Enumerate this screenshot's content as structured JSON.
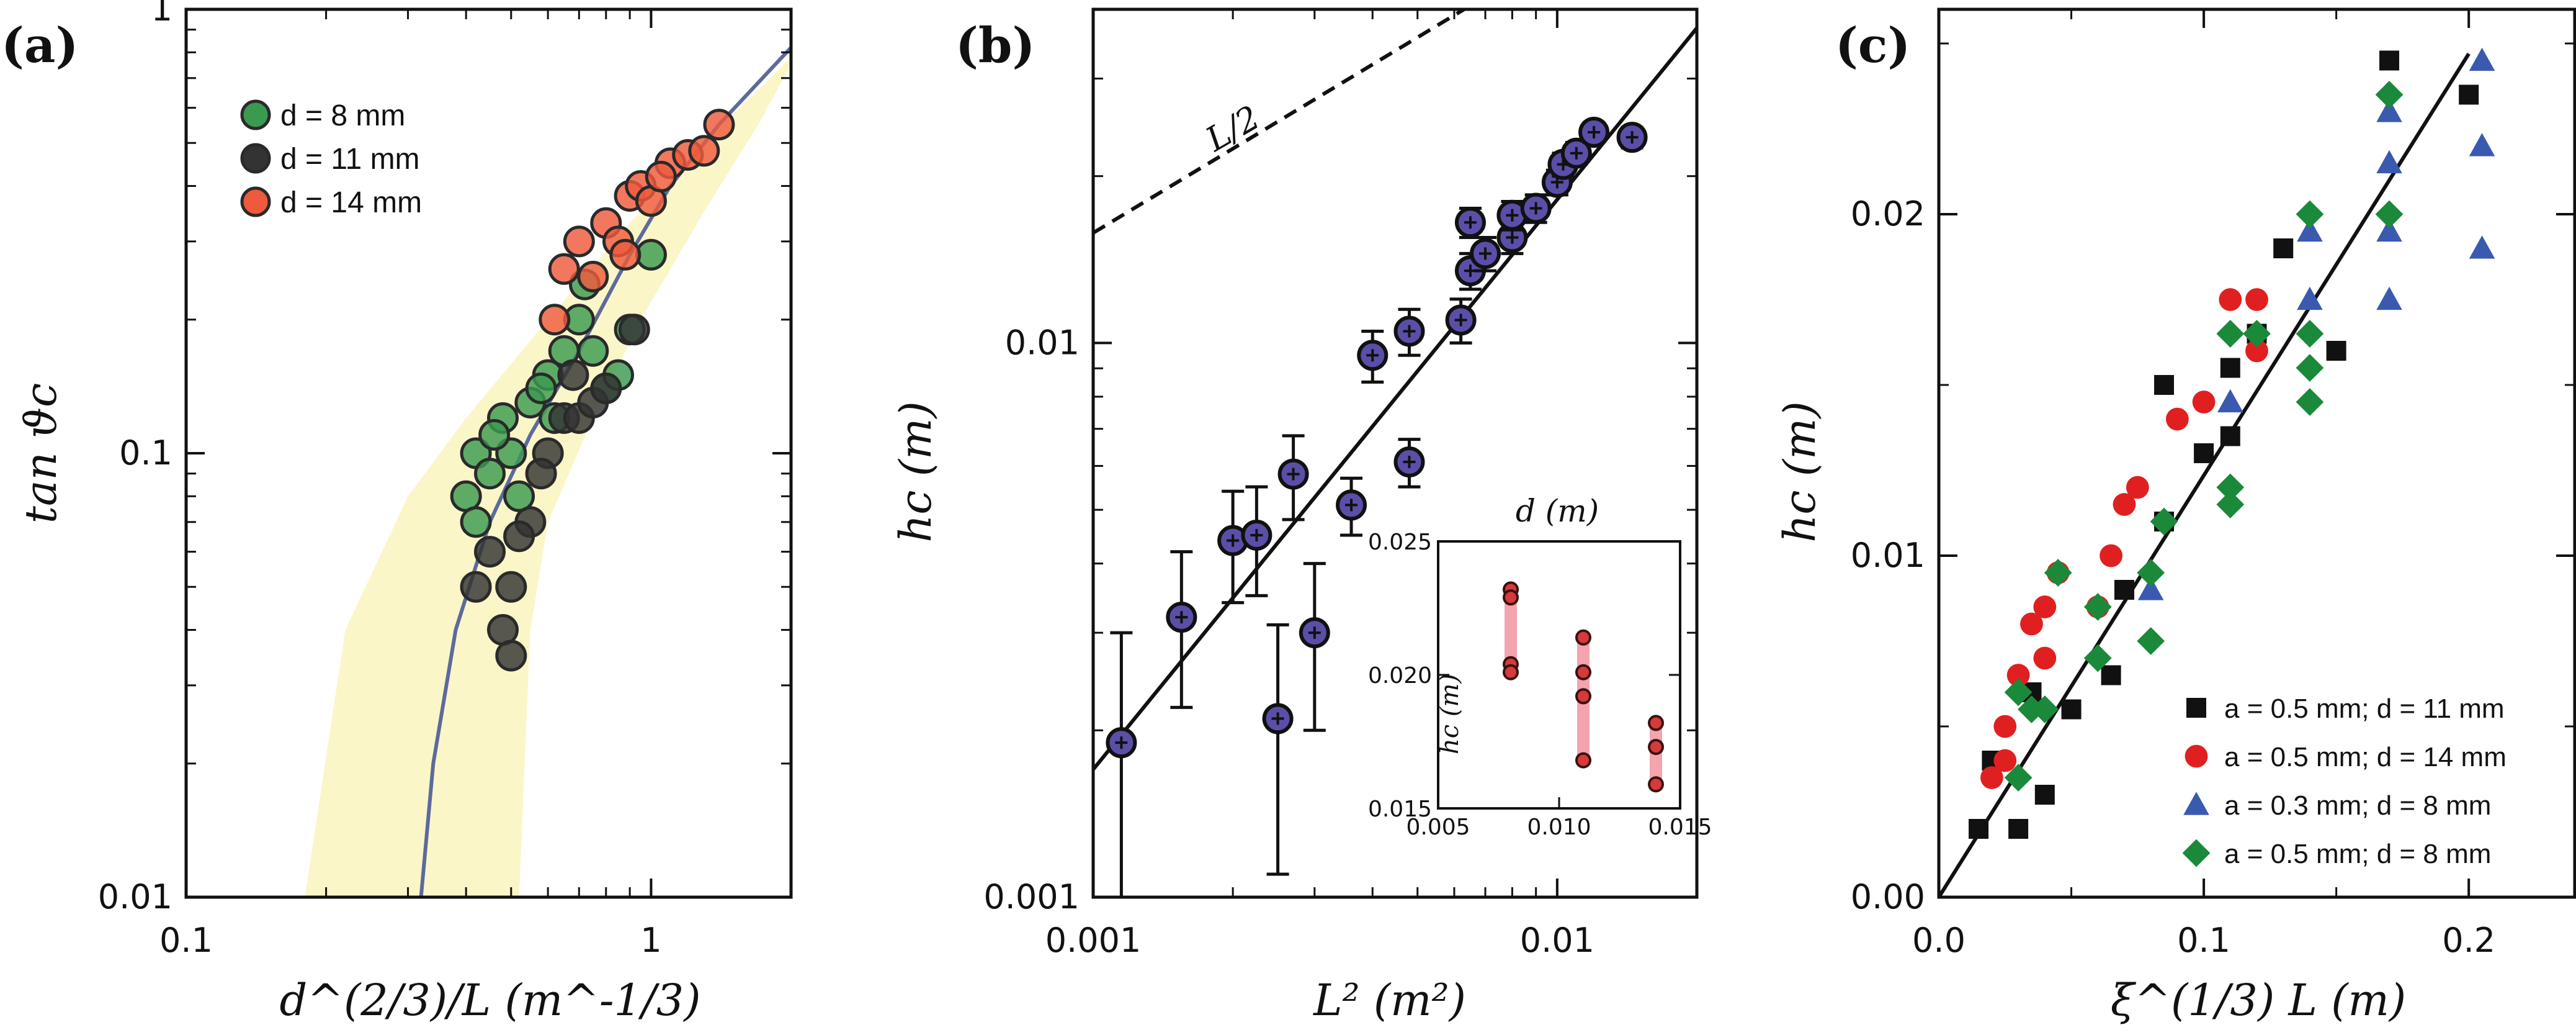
{
  "chart_data": [
    {
      "panel": "(a)",
      "type": "scatter",
      "xscale": "log",
      "yscale": "log",
      "xlim": [
        0.1,
        2.0
      ],
      "ylim": [
        0.01,
        1.0
      ],
      "xlabel": "d^(2/3)/L (m^-1/3)",
      "ylabel": "tan ϑc",
      "xticks": [
        {
          "v": 0.1,
          "label": "0.1"
        },
        {
          "v": 1,
          "label": "1"
        }
      ],
      "yticks": [
        {
          "v": 0.01,
          "label": "0.01"
        },
        {
          "v": 0.1,
          "label": "0.1"
        },
        {
          "v": 1,
          "label": "1"
        }
      ],
      "legend_position": "top-left",
      "legend": [
        {
          "label": "d = 8 mm",
          "color": "#3a9a50"
        },
        {
          "label": "d = 11 mm",
          "color": "#333333"
        },
        {
          "label": "d = 14 mm",
          "color": "#ee5a3c"
        }
      ],
      "fit_curve": [
        [
          0.32,
          0.01
        ],
        [
          0.34,
          0.02
        ],
        [
          0.38,
          0.04
        ],
        [
          0.45,
          0.07
        ],
        [
          0.55,
          0.11
        ],
        [
          0.7,
          0.17
        ],
        [
          0.9,
          0.28
        ],
        [
          1.1,
          0.4
        ],
        [
          1.4,
          0.55
        ],
        [
          2.0,
          0.82
        ]
      ],
      "band_lower": [
        [
          0.18,
          0.01
        ],
        [
          0.22,
          0.04
        ],
        [
          0.3,
          0.08
        ],
        [
          0.4,
          0.12
        ],
        [
          0.6,
          0.2
        ],
        [
          0.9,
          0.33
        ],
        [
          1.3,
          0.5
        ],
        [
          2.0,
          0.78
        ]
      ],
      "band_upper": [
        [
          0.52,
          0.01
        ],
        [
          0.55,
          0.04
        ],
        [
          0.6,
          0.07
        ],
        [
          0.75,
          0.12
        ],
        [
          0.95,
          0.2
        ],
        [
          1.3,
          0.35
        ],
        [
          1.7,
          0.55
        ],
        [
          2.0,
          0.75
        ]
      ],
      "series": [
        {
          "name": "d = 8 mm",
          "color": "#3a9a50",
          "points": [
            [
              0.4,
              0.08
            ],
            [
              0.42,
              0.1
            ],
            [
              0.45,
              0.09
            ],
            [
              0.48,
              0.12
            ],
            [
              0.5,
              0.1
            ],
            [
              0.52,
              0.08
            ],
            [
              0.55,
              0.13
            ],
            [
              0.6,
              0.15
            ],
            [
              0.65,
              0.17
            ],
            [
              0.7,
              0.2
            ],
            [
              0.75,
              0.17
            ],
            [
              0.8,
              0.14
            ],
            [
              0.85,
              0.15
            ],
            [
              0.9,
              0.19
            ],
            [
              1.0,
              0.28
            ],
            [
              0.42,
              0.07
            ],
            [
              0.46,
              0.11
            ],
            [
              0.62,
              0.12
            ],
            [
              0.72,
              0.24
            ],
            [
              0.58,
              0.14
            ]
          ]
        },
        {
          "name": "d = 11 mm",
          "color": "#333333",
          "points": [
            [
              0.42,
              0.05
            ],
            [
              0.45,
              0.06
            ],
            [
              0.48,
              0.04
            ],
            [
              0.5,
              0.035
            ],
            [
              0.55,
              0.07
            ],
            [
              0.6,
              0.1
            ],
            [
              0.65,
              0.12
            ],
            [
              0.7,
              0.12
            ],
            [
              0.75,
              0.13
            ],
            [
              0.8,
              0.14
            ],
            [
              0.52,
              0.065
            ],
            [
              0.58,
              0.09
            ],
            [
              0.68,
              0.15
            ],
            [
              0.92,
              0.19
            ],
            [
              0.5,
              0.05
            ]
          ]
        },
        {
          "name": "d = 14 mm",
          "color": "#ee5a3c",
          "points": [
            [
              0.65,
              0.26
            ],
            [
              0.7,
              0.3
            ],
            [
              0.75,
              0.25
            ],
            [
              0.8,
              0.33
            ],
            [
              0.85,
              0.3
            ],
            [
              0.9,
              0.38
            ],
            [
              0.95,
              0.4
            ],
            [
              1.0,
              0.37
            ],
            [
              1.1,
              0.45
            ],
            [
              1.2,
              0.47
            ],
            [
              1.3,
              0.48
            ],
            [
              1.4,
              0.55
            ],
            [
              0.62,
              0.2
            ],
            [
              1.05,
              0.42
            ],
            [
              0.88,
              0.28
            ]
          ]
        }
      ]
    },
    {
      "panel": "(b)",
      "type": "scatter",
      "xscale": "log",
      "yscale": "log",
      "xlim": [
        0.001,
        0.02
      ],
      "ylim": [
        0.001,
        0.04
      ],
      "xlabel": "L² (m²)",
      "ylabel": "hc (m)",
      "xticks": [
        {
          "v": 0.001,
          "label": "0.001"
        },
        {
          "v": 0.01,
          "label": "0.01"
        }
      ],
      "yticks": [
        {
          "v": 0.001,
          "label": "0.001"
        },
        {
          "v": 0.01,
          "label": "0.01"
        }
      ],
      "annotation": "L/2",
      "dashed_line": [
        [
          0.001,
          0.0158
        ],
        [
          0.0063,
          0.04
        ]
      ],
      "fit_line": [
        [
          0.001,
          0.0017
        ],
        [
          0.02,
          0.037
        ]
      ],
      "points": [
        {
          "x": 0.00115,
          "y": 0.0019,
          "err": 0.0011
        },
        {
          "x": 0.00155,
          "y": 0.0032,
          "err": 0.001
        },
        {
          "x": 0.002,
          "y": 0.0044,
          "err": 0.001
        },
        {
          "x": 0.00225,
          "y": 0.0045,
          "err": 0.001
        },
        {
          "x": 0.0025,
          "y": 0.0021,
          "err": 0.001
        },
        {
          "x": 0.0027,
          "y": 0.0058,
          "err": 0.001
        },
        {
          "x": 0.003,
          "y": 0.003,
          "err": 0.001
        },
        {
          "x": 0.0036,
          "y": 0.0051,
          "err": 0.0006
        },
        {
          "x": 0.004,
          "y": 0.0095,
          "err": 0.001
        },
        {
          "x": 0.0048,
          "y": 0.0061,
          "err": 0.0006
        },
        {
          "x": 0.0048,
          "y": 0.0105,
          "err": 0.001
        },
        {
          "x": 0.0062,
          "y": 0.011,
          "err": 0.001
        },
        {
          "x": 0.0065,
          "y": 0.0135,
          "err": 0.001
        },
        {
          "x": 0.0065,
          "y": 0.0165,
          "err": 0.001
        },
        {
          "x": 0.007,
          "y": 0.0145,
          "err": 0.001
        },
        {
          "x": 0.008,
          "y": 0.0155,
          "err": 0.001
        },
        {
          "x": 0.008,
          "y": 0.017,
          "err": 0.001
        },
        {
          "x": 0.009,
          "y": 0.0175,
          "err": 0.001
        },
        {
          "x": 0.01,
          "y": 0.0195,
          "err": 0.001
        },
        {
          "x": 0.0103,
          "y": 0.021,
          "err": 0.001
        },
        {
          "x": 0.011,
          "y": 0.022,
          "err": 0.001
        },
        {
          "x": 0.012,
          "y": 0.024,
          "err": 0.001
        },
        {
          "x": 0.0145,
          "y": 0.0235,
          "err": 0.001
        }
      ],
      "inset": {
        "title": "d (m)",
        "ylabel": "hc (m)",
        "xlim": [
          0.005,
          0.015
        ],
        "ylim": [
          0.015,
          0.025
        ],
        "xticks": [
          {
            "v": 0.005,
            "label": "0.005"
          },
          {
            "v": 0.01,
            "label": "0.010"
          },
          {
            "v": 0.015,
            "label": "0.015"
          }
        ],
        "yticks": [
          {
            "v": 0.015,
            "label": "0.015"
          },
          {
            "v": 0.02,
            "label": "0.020"
          },
          {
            "v": 0.025,
            "label": "0.025"
          }
        ],
        "groups": [
          {
            "x": 0.008,
            "values": [
              0.0232,
              0.0229,
              0.0204,
              0.0201
            ]
          },
          {
            "x": 0.011,
            "values": [
              0.0214,
              0.0201,
              0.0192,
              0.0168
            ]
          },
          {
            "x": 0.014,
            "values": [
              0.0182,
              0.0173,
              0.0159
            ]
          }
        ]
      }
    },
    {
      "panel": "(c)",
      "type": "scatter",
      "xscale": "linear",
      "yscale": "linear",
      "xlim": [
        0.0,
        0.24
      ],
      "ylim": [
        0.0,
        0.026
      ],
      "xlabel": "ξ^(1/3) L (m)",
      "ylabel": "hc (m)",
      "xticks": [
        {
          "v": 0.0,
          "label": "0.0"
        },
        {
          "v": 0.1,
          "label": "0.1"
        },
        {
          "v": 0.2,
          "label": "0.2"
        }
      ],
      "yticks": [
        {
          "v": 0.0,
          "label": "0.00"
        },
        {
          "v": 0.01,
          "label": "0.01"
        },
        {
          "v": 0.02,
          "label": "0.02"
        }
      ],
      "legend_position": "bottom-right",
      "fit_line": [
        [
          0.0,
          0.0
        ],
        [
          0.2,
          0.0247
        ]
      ],
      "series": [
        {
          "name": "a = 0.5 mm; d = 11 mm",
          "marker": "square",
          "color": "#111111",
          "points": [
            [
              0.015,
              0.002
            ],
            [
              0.02,
              0.004
            ],
            [
              0.03,
              0.002
            ],
            [
              0.04,
              0.003
            ],
            [
              0.05,
              0.0055
            ],
            [
              0.065,
              0.0065
            ],
            [
              0.07,
              0.009
            ],
            [
              0.085,
              0.011
            ],
            [
              0.085,
              0.015
            ],
            [
              0.1,
              0.013
            ],
            [
              0.11,
              0.0135
            ],
            [
              0.11,
              0.0155
            ],
            [
              0.12,
              0.0165
            ],
            [
              0.13,
              0.019
            ],
            [
              0.15,
              0.016
            ],
            [
              0.17,
              0.0245
            ],
            [
              0.2,
              0.0235
            ],
            [
              0.035,
              0.006
            ]
          ]
        },
        {
          "name": "a = 0.5 mm; d = 14 mm",
          "marker": "circle",
          "color": "#e02020",
          "points": [
            [
              0.02,
              0.0035
            ],
            [
              0.025,
              0.005
            ],
            [
              0.03,
              0.0065
            ],
            [
              0.035,
              0.008
            ],
            [
              0.04,
              0.007
            ],
            [
              0.045,
              0.0095
            ],
            [
              0.06,
              0.0085
            ],
            [
              0.065,
              0.01
            ],
            [
              0.07,
              0.0115
            ],
            [
              0.075,
              0.012
            ],
            [
              0.09,
              0.014
            ],
            [
              0.1,
              0.0145
            ],
            [
              0.11,
              0.0175
            ],
            [
              0.12,
              0.0175
            ],
            [
              0.12,
              0.016
            ],
            [
              0.025,
              0.004
            ],
            [
              0.04,
              0.0085
            ]
          ]
        },
        {
          "name": "a = 0.3 mm; d = 8 mm",
          "marker": "triangle",
          "color": "#3a5ab0",
          "points": [
            [
              0.08,
              0.009
            ],
            [
              0.11,
              0.0145
            ],
            [
              0.14,
              0.0175
            ],
            [
              0.14,
              0.0195
            ],
            [
              0.17,
              0.0175
            ],
            [
              0.17,
              0.0195
            ],
            [
              0.17,
              0.0215
            ],
            [
              0.17,
              0.023
            ],
            [
              0.205,
              0.0245
            ],
            [
              0.205,
              0.022
            ],
            [
              0.205,
              0.019
            ]
          ]
        },
        {
          "name": "a = 0.5 mm; d = 8 mm",
          "marker": "diamond",
          "color": "#1a8a3a",
          "points": [
            [
              0.03,
              0.0035
            ],
            [
              0.035,
              0.0055
            ],
            [
              0.04,
              0.0055
            ],
            [
              0.045,
              0.0095
            ],
            [
              0.06,
              0.007
            ],
            [
              0.06,
              0.0085
            ],
            [
              0.08,
              0.0075
            ],
            [
              0.08,
              0.0095
            ],
            [
              0.085,
              0.011
            ],
            [
              0.11,
              0.0115
            ],
            [
              0.11,
              0.012
            ],
            [
              0.11,
              0.0165
            ],
            [
              0.12,
              0.0165
            ],
            [
              0.14,
              0.0165
            ],
            [
              0.14,
              0.0155
            ],
            [
              0.14,
              0.0145
            ],
            [
              0.14,
              0.02
            ],
            [
              0.17,
              0.02
            ],
            [
              0.17,
              0.0235
            ],
            [
              0.03,
              0.006
            ]
          ]
        }
      ]
    }
  ]
}
